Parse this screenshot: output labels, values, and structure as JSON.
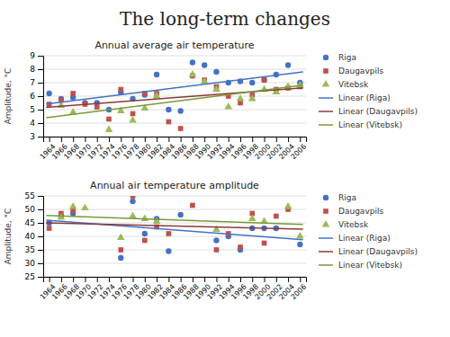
{
  "title": "The long-term changes",
  "chart_data": [
    {
      "type": "scatter",
      "title": "Annual average air temperature",
      "y_label": "Amplitude, °C",
      "xlim": [
        1963,
        2007
      ],
      "xticks": [
        1964,
        1966,
        1968,
        1970,
        1972,
        1974,
        1976,
        1978,
        1980,
        1982,
        1984,
        1986,
        1988,
        1990,
        1992,
        1994,
        1996,
        1998,
        2000,
        2002,
        2004,
        2006
      ],
      "ylim": [
        3,
        9
      ],
      "yticks": [
        3,
        4,
        5,
        6,
        7,
        8,
        9
      ],
      "grid": true,
      "legend": "right",
      "series": [
        {
          "name": "Riga",
          "type": "scatter",
          "marker": "circle",
          "color": "#4472C4",
          "x": [
            1964,
            1966,
            1968,
            1970,
            1972,
            1974,
            1976,
            1978,
            1980,
            1982,
            1984,
            1986,
            1988,
            1990,
            1992,
            1994,
            1996,
            1998,
            2000,
            2002,
            2004,
            2006
          ],
          "values": [
            6.2,
            5.8,
            5.9,
            5.5,
            5.5,
            5.0,
            6.3,
            5.8,
            6.1,
            7.6,
            5.0,
            4.9,
            8.5,
            8.3,
            7.8,
            7.0,
            7.1,
            7.0,
            7.2,
            7.6,
            8.3,
            7.0
          ]
        },
        {
          "name": "Daugavpils",
          "type": "scatter",
          "marker": "square",
          "color": "#C0504D",
          "x": [
            1964,
            1966,
            1968,
            1970,
            1972,
            1974,
            1976,
            1978,
            1980,
            1982,
            1984,
            1986,
            1988,
            1990,
            1992,
            1994,
            1996,
            1998,
            2000,
            2002,
            2004,
            2006
          ],
          "values": [
            5.4,
            5.7,
            6.2,
            5.4,
            5.2,
            4.3,
            6.5,
            4.7,
            6.2,
            6.2,
            4.1,
            3.6,
            7.5,
            7.2,
            6.7,
            6.0,
            5.5,
            6.1,
            7.2,
            6.5,
            6.6,
            6.7
          ]
        },
        {
          "name": "Vitebsk",
          "type": "scatter",
          "marker": "triangle",
          "color": "#9BBB59",
          "x": [
            1964,
            1966,
            1968,
            1970,
            1972,
            1974,
            1976,
            1978,
            1980,
            1982,
            1984,
            1986,
            1988,
            1990,
            1992,
            1994,
            1996,
            1998,
            2000,
            2002,
            2004,
            2006
          ],
          "values": [
            null,
            5.3,
            4.8,
            null,
            null,
            3.5,
            4.9,
            4.2,
            5.1,
            6.0,
            null,
            null,
            7.6,
            7.1,
            6.5,
            5.2,
            5.8,
            5.8,
            6.5,
            6.3,
            6.7,
            6.8
          ]
        },
        {
          "name": "Linear (Riga)",
          "type": "line",
          "line_style": "solid",
          "color": "#4472C4",
          "x": [
            1963.5,
            2006.5
          ],
          "values": [
            5.424,
            7.794
          ]
        },
        {
          "name": "Linear (Daugavpils)",
          "type": "line",
          "line_style": "solid",
          "color": "#8B3A38",
          "x": [
            1963.5,
            2006.5
          ],
          "values": [
            5.162,
            6.611
          ]
        },
        {
          "name": "Linear (Vitebsk)",
          "type": "line",
          "line_style": "solid",
          "color": "#7A9A3A",
          "x": [
            1963.5,
            2006.5
          ],
          "values": [
            4.402,
            6.816
          ]
        }
      ]
    },
    {
      "type": "scatter",
      "title": "Annual air temperature amplitude",
      "y_label": "Amplitude, °C",
      "xlim": [
        1963,
        2007
      ],
      "xticks": [
        1964,
        1966,
        1968,
        1970,
        1972,
        1974,
        1976,
        1978,
        1980,
        1982,
        1984,
        1986,
        1988,
        1990,
        1992,
        1994,
        1996,
        1998,
        2000,
        2002,
        2004,
        2006
      ],
      "ylim": [
        25,
        55
      ],
      "yticks": [
        25,
        30,
        35,
        40,
        45,
        50,
        55
      ],
      "grid": true,
      "legend": "right",
      "series": [
        {
          "name": "Riga",
          "type": "scatter",
          "marker": "circle",
          "color": "#4472C4",
          "x": [
            1964,
            1966,
            1968,
            1970,
            1972,
            1974,
            1976,
            1978,
            1980,
            1982,
            1984,
            1986,
            1988,
            1990,
            1992,
            1994,
            1996,
            1998,
            2000,
            2002,
            2004,
            2006
          ],
          "values": [
            45.0,
            47.5,
            48.5,
            null,
            null,
            null,
            32.0,
            53.0,
            41.0,
            46.5,
            34.5,
            48.0,
            null,
            null,
            38.5,
            40.0,
            35.0,
            43.0,
            43.0,
            43.0,
            null,
            37.0
          ]
        },
        {
          "name": "Daugavpils",
          "type": "scatter",
          "marker": "square",
          "color": "#C0504D",
          "x": [
            1964,
            1966,
            1968,
            1970,
            1972,
            1974,
            1976,
            1978,
            1980,
            1982,
            1984,
            1986,
            1988,
            1990,
            1992,
            1994,
            1996,
            1998,
            2000,
            2002,
            2004,
            2006
          ],
          "values": [
            43.0,
            48.5,
            49.5,
            null,
            null,
            null,
            35.0,
            55.0,
            38.5,
            43.5,
            41.0,
            null,
            51.5,
            null,
            35.0,
            41.0,
            36.0,
            48.5,
            37.5,
            47.5,
            50.0,
            null
          ]
        },
        {
          "name": "Vitebsk",
          "type": "scatter",
          "marker": "triangle",
          "color": "#9BBB59",
          "x": [
            1964,
            1966,
            1968,
            1970,
            1972,
            1974,
            1976,
            1978,
            1980,
            1982,
            1984,
            1986,
            1988,
            1990,
            1992,
            1994,
            1996,
            1998,
            2000,
            2002,
            2004,
            2006
          ],
          "values": [
            null,
            47.0,
            51.0,
            50.5,
            null,
            null,
            39.5,
            47.5,
            46.5,
            45.5,
            null,
            null,
            null,
            null,
            42.5,
            null,
            null,
            46.5,
            45.5,
            null,
            51.0,
            40.0
          ]
        },
        {
          "name": "Linear (Riga)",
          "type": "line",
          "line_style": "solid",
          "color": "#4472C4",
          "x": [
            1963.5,
            2006.5
          ],
          "values": [
            45.969,
            38.721
          ]
        },
        {
          "name": "Linear (Daugavpils)",
          "type": "line",
          "line_style": "solid",
          "color": "#8B3A38",
          "x": [
            1963.5,
            2006.5
          ],
          "values": [
            45.04,
            42.668
          ]
        },
        {
          "name": "Linear (Vitebsk)",
          "type": "line",
          "line_style": "solid",
          "color": "#7A9A3A",
          "x": [
            1963.5,
            2006.5
          ],
          "values": [
            47.787,
            44.38
          ]
        }
      ]
    }
  ]
}
